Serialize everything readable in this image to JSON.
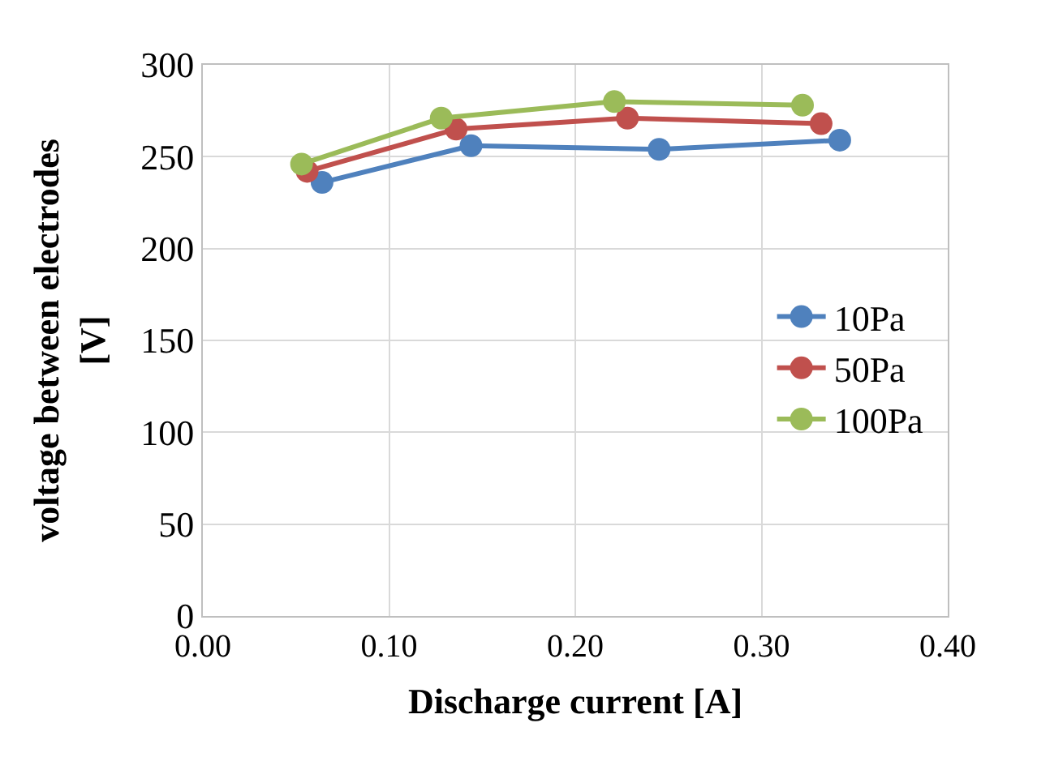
{
  "chart_data": {
    "type": "line",
    "xlabel": "Discharge current [A]",
    "ylabel": "voltage between electrodes\n[V]",
    "series": [
      {
        "name": "10Pa",
        "color": "#4f81bd",
        "x": [
          0.064,
          0.144,
          0.245,
          0.342
        ],
        "values": [
          236,
          256,
          254,
          259
        ]
      },
      {
        "name": "50Pa",
        "color": "#c0504d",
        "x": [
          0.056,
          0.136,
          0.228,
          0.332
        ],
        "values": [
          242,
          265,
          271,
          268
        ]
      },
      {
        "name": "100Pa",
        "color": "#9bbb59",
        "x": [
          0.053,
          0.128,
          0.221,
          0.322
        ],
        "values": [
          246,
          271,
          280,
          278
        ]
      }
    ],
    "xlim": [
      0,
      0.4
    ],
    "xticks": [
      {
        "value": 0,
        "label": "0.00"
      },
      {
        "value": 0.1,
        "label": "0.10"
      },
      {
        "value": 0.2,
        "label": "0.20"
      },
      {
        "value": 0.3,
        "label": "0.30"
      },
      {
        "value": 0.4,
        "label": "0.40"
      }
    ],
    "ylim": [
      0,
      300
    ],
    "yticks": [
      0,
      50,
      100,
      150,
      200,
      250,
      300
    ],
    "grid": true,
    "legend": "right",
    "marker": "circle",
    "line_style": "solid"
  }
}
